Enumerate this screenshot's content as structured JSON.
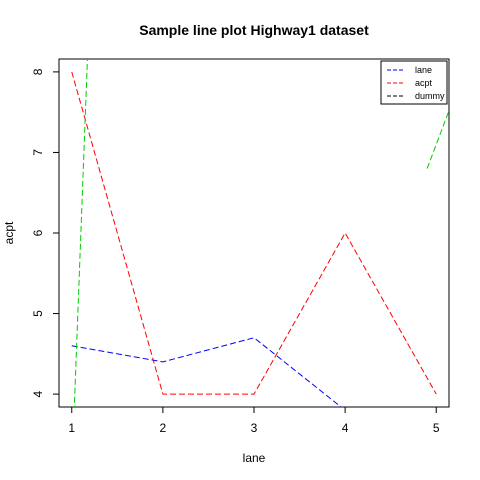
{
  "chart_data": {
    "type": "line",
    "title": "Sample line plot  Highway1 dataset",
    "xlabel": "lane",
    "ylabel": "acpt",
    "x_ticks": [
      1,
      2,
      3,
      4,
      5
    ],
    "y_ticks": [
      4,
      5,
      6,
      7,
      8
    ],
    "xlim": [
      0.86,
      5.14
    ],
    "ylim": [
      3.84,
      8.16
    ],
    "grid": false,
    "legend_position": "top-right",
    "series": [
      {
        "name": "lane",
        "color": "#0000ff",
        "x": [
          1,
          2,
          3,
          4,
          5
        ],
        "y": [
          4.6,
          4.4,
          4.7,
          3.8,
          3.6
        ]
      },
      {
        "name": "acpt",
        "color": "#ff0000",
        "x": [
          1,
          2,
          3,
          4,
          5
        ],
        "y": [
          8.0,
          4.0,
          4.0,
          6.0,
          4.0
        ]
      },
      {
        "name": "dummy",
        "color": "#000000",
        "x": [],
        "y": []
      },
      {
        "name": "",
        "color": "#00cc00",
        "x": [
          1.0,
          1.3
        ],
        "y": [
          3.0,
          12.0
        ]
      },
      {
        "name": "",
        "color": "#00cc00",
        "x": [
          4.9,
          5.3
        ],
        "y": [
          6.8,
          8.0
        ]
      }
    ]
  }
}
